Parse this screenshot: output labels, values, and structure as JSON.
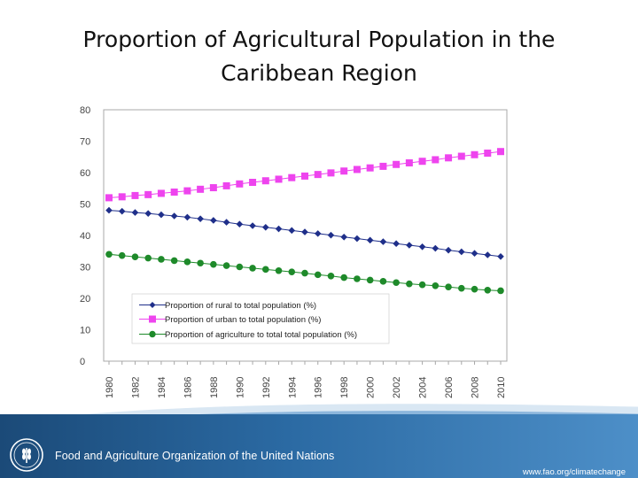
{
  "slide": {
    "title_line1": "Proportion of Agricultural Population in the",
    "title_line2": "Caribbean Region"
  },
  "footer": {
    "organization": "Food and Agriculture Organization of the United Nations",
    "url": "www.fao.org/climatechange",
    "logo_text": "FAO"
  },
  "colors": {
    "rural": "#1f2f8a",
    "urban": "#ee44ee",
    "agri": "#1e8a2a",
    "footer": "#1b4a78"
  },
  "chart_data": {
    "type": "line",
    "title": "",
    "xlabel": "",
    "ylabel": "",
    "ylim": [
      0,
      80
    ],
    "yticks": [
      0,
      10,
      20,
      30,
      40,
      50,
      60,
      70,
      80
    ],
    "xticklabels": [
      "1980",
      "1982",
      "1984",
      "1986",
      "1988",
      "1990",
      "1992",
      "1994",
      "1996",
      "1998",
      "2000",
      "2002",
      "2004",
      "2006",
      "2008",
      "2010"
    ],
    "legend_position": "bottom-left",
    "x": [
      1980,
      1981,
      1982,
      1983,
      1984,
      1985,
      1986,
      1987,
      1988,
      1989,
      1990,
      1991,
      1992,
      1993,
      1994,
      1995,
      1996,
      1997,
      1998,
      1999,
      2000,
      2001,
      2002,
      2003,
      2004,
      2005,
      2006,
      2007,
      2008,
      2009,
      2010
    ],
    "series": [
      {
        "key": "rural",
        "name": "Proportion of rural to total population (%)",
        "marker": "diamond",
        "values": [
          48,
          47.7,
          47.3,
          47,
          46.6,
          46.2,
          45.8,
          45.3,
          44.8,
          44.2,
          43.6,
          43.1,
          42.6,
          42.1,
          41.6,
          41.1,
          40.6,
          40.1,
          39.5,
          39,
          38.5,
          38,
          37.4,
          36.9,
          36.4,
          35.9,
          35.3,
          34.8,
          34.3,
          33.8,
          33.3
        ]
      },
      {
        "key": "urban",
        "name": "Proportion of urban to total population (%)",
        "marker": "square",
        "values": [
          52,
          52.3,
          52.7,
          53,
          53.4,
          53.8,
          54.2,
          54.7,
          55.2,
          55.8,
          56.4,
          56.9,
          57.4,
          57.9,
          58.4,
          58.9,
          59.4,
          59.9,
          60.5,
          61,
          61.5,
          62,
          62.6,
          63.1,
          63.6,
          64.1,
          64.7,
          65.2,
          65.7,
          66.2,
          66.7
        ]
      },
      {
        "key": "agri",
        "name": "Proportion of agriculture to total total population (%)",
        "marker": "circle",
        "values": [
          34,
          33.6,
          33.2,
          32.8,
          32.4,
          32,
          31.6,
          31.2,
          30.8,
          30.4,
          30,
          29.6,
          29.2,
          28.8,
          28.4,
          28,
          27.5,
          27.1,
          26.6,
          26.2,
          25.8,
          25.4,
          25,
          24.6,
          24.3,
          24,
          23.6,
          23.2,
          22.9,
          22.6,
          22.4
        ]
      }
    ]
  }
}
